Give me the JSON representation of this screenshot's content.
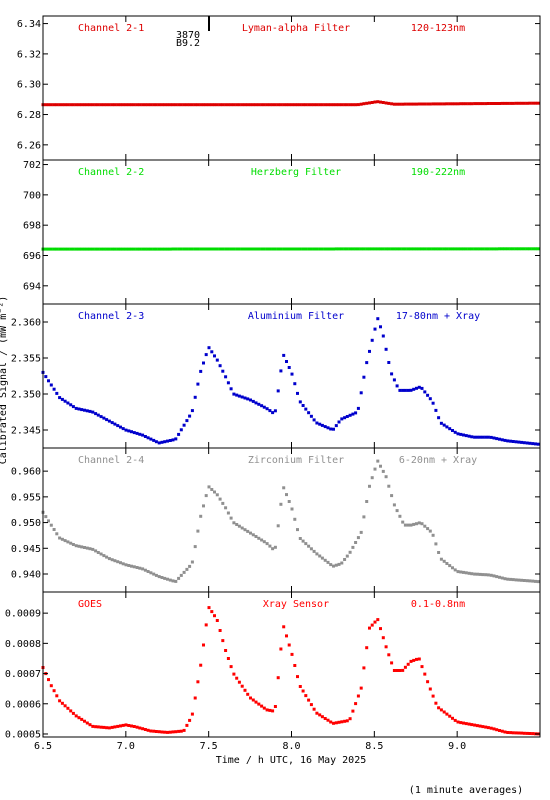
{
  "page": {
    "xlabel": "Time / h UTC, 16 May 2025",
    "ylabel": "Calibrated Signal / (mW m⁻²)",
    "footnote": "(1 minute averages)",
    "marker_text": [
      "3870",
      "B9.2"
    ]
  },
  "chart_data": [
    {
      "type": "scatter",
      "id": "ch21",
      "channel_label": "Channel 2-1",
      "filter_label": "Lyman-alpha Filter",
      "band_label": "120-123nm",
      "color": "#dd0000",
      "xlim": [
        6.5,
        9.5
      ],
      "ylim": [
        6.25,
        6.345
      ],
      "xticks": [
        6.5,
        7.0,
        7.5,
        8.0,
        8.5,
        9.0
      ],
      "yticks": [
        6.26,
        6.28,
        6.3,
        6.32,
        6.34
      ],
      "ytick_labels": [
        "6.26",
        "6.28",
        "6.30",
        "6.32",
        "6.34"
      ],
      "x_start": 6.5,
      "x_end": 9.5,
      "x_step": 0.0167,
      "keys": [
        [
          6.5,
          6.2865
        ],
        [
          8.4,
          6.2865
        ],
        [
          8.52,
          6.2885
        ],
        [
          8.62,
          6.2868
        ],
        [
          9.5,
          6.2875
        ]
      ]
    },
    {
      "type": "scatter",
      "id": "ch22",
      "channel_label": "Channel 2-2",
      "filter_label": "Herzberg Filter",
      "band_label": "190-222nm",
      "color": "#00dd00",
      "xlim": [
        6.5,
        9.5
      ],
      "ylim": [
        692.8,
        702.3
      ],
      "xticks": [
        6.5,
        7.0,
        7.5,
        8.0,
        8.5,
        9.0
      ],
      "yticks": [
        694,
        696,
        698,
        700,
        702
      ],
      "ytick_labels": [
        "694",
        "696",
        "698",
        "700",
        "702"
      ],
      "x_start": 6.5,
      "x_end": 9.5,
      "x_step": 0.0167,
      "keys": [
        [
          6.5,
          696.42
        ],
        [
          9.5,
          696.44
        ]
      ]
    },
    {
      "type": "scatter",
      "id": "ch23",
      "channel_label": "Channel 2-3",
      "filter_label": "Aluminium Filter",
      "band_label": "17-80nm + Xray",
      "color": "#0000cc",
      "xlim": [
        6.5,
        9.5
      ],
      "ylim": [
        2.3425,
        2.3625
      ],
      "xticks": [
        6.5,
        7.0,
        7.5,
        8.0,
        8.5,
        9.0
      ],
      "yticks": [
        2.345,
        2.35,
        2.355,
        2.36
      ],
      "ytick_labels": [
        "2.345",
        "2.350",
        "2.355",
        "2.360"
      ],
      "x_start": 6.5,
      "x_end": 9.5,
      "x_step": 0.0167,
      "keys": [
        [
          6.5,
          2.353
        ],
        [
          6.6,
          2.3495
        ],
        [
          6.7,
          2.348
        ],
        [
          6.8,
          2.3475
        ],
        [
          6.88,
          2.3465
        ],
        [
          7.0,
          2.345
        ],
        [
          7.1,
          2.3443
        ],
        [
          7.2,
          2.3432
        ],
        [
          7.3,
          2.3437
        ],
        [
          7.4,
          2.3475
        ],
        [
          7.45,
          2.353
        ],
        [
          7.5,
          2.3565
        ],
        [
          7.55,
          2.3548
        ],
        [
          7.6,
          2.3525
        ],
        [
          7.65,
          2.35
        ],
        [
          7.75,
          2.3492
        ],
        [
          7.85,
          2.348
        ],
        [
          7.9,
          2.3472
        ],
        [
          7.95,
          2.3555
        ],
        [
          8.0,
          2.353
        ],
        [
          8.05,
          2.349
        ],
        [
          8.15,
          2.346
        ],
        [
          8.25,
          2.345
        ],
        [
          8.3,
          2.3465
        ],
        [
          8.35,
          2.347
        ],
        [
          8.4,
          2.3475
        ],
        [
          8.45,
          2.354
        ],
        [
          8.52,
          2.3605
        ],
        [
          8.55,
          2.3585
        ],
        [
          8.6,
          2.353
        ],
        [
          8.65,
          2.3505
        ],
        [
          8.72,
          2.3505
        ],
        [
          8.78,
          2.351
        ],
        [
          8.85,
          2.349
        ],
        [
          8.9,
          2.346
        ],
        [
          9.0,
          2.3445
        ],
        [
          9.1,
          2.344
        ],
        [
          9.2,
          2.344
        ],
        [
          9.3,
          2.3435
        ],
        [
          9.5,
          2.343
        ]
      ]
    },
    {
      "type": "scatter",
      "id": "ch24",
      "channel_label": "Channel 2-4",
      "filter_label": "Zirconium Filter",
      "band_label": "6-20nm + Xray",
      "color": "#909090",
      "xlim": [
        6.5,
        9.5
      ],
      "ylim": [
        0.9365,
        0.9645
      ],
      "xticks": [
        6.5,
        7.0,
        7.5,
        8.0,
        8.5,
        9.0
      ],
      "yticks": [
        0.94,
        0.945,
        0.95,
        0.955,
        0.96
      ],
      "ytick_labels": [
        "0.940",
        "0.945",
        "0.950",
        "0.955",
        "0.960"
      ],
      "x_start": 6.5,
      "x_end": 9.5,
      "x_step": 0.0167,
      "keys": [
        [
          6.5,
          0.952
        ],
        [
          6.6,
          0.947
        ],
        [
          6.7,
          0.9455
        ],
        [
          6.8,
          0.9448
        ],
        [
          6.9,
          0.943
        ],
        [
          7.0,
          0.9418
        ],
        [
          7.1,
          0.941
        ],
        [
          7.2,
          0.9395
        ],
        [
          7.3,
          0.9385
        ],
        [
          7.4,
          0.942
        ],
        [
          7.45,
          0.951
        ],
        [
          7.5,
          0.957
        ],
        [
          7.55,
          0.9555
        ],
        [
          7.6,
          0.953
        ],
        [
          7.65,
          0.95
        ],
        [
          7.75,
          0.948
        ],
        [
          7.85,
          0.946
        ],
        [
          7.9,
          0.9445
        ],
        [
          7.95,
          0.957
        ],
        [
          8.0,
          0.953
        ],
        [
          8.05,
          0.947
        ],
        [
          8.15,
          0.944
        ],
        [
          8.25,
          0.9415
        ],
        [
          8.3,
          0.942
        ],
        [
          8.35,
          0.944
        ],
        [
          8.42,
          0.948
        ],
        [
          8.47,
          0.957
        ],
        [
          8.52,
          0.962
        ],
        [
          8.57,
          0.959
        ],
        [
          8.62,
          0.9535
        ],
        [
          8.68,
          0.9495
        ],
        [
          8.72,
          0.9495
        ],
        [
          8.78,
          0.95
        ],
        [
          8.85,
          0.948
        ],
        [
          8.9,
          0.943
        ],
        [
          9.0,
          0.9405
        ],
        [
          9.1,
          0.94
        ],
        [
          9.2,
          0.9398
        ],
        [
          9.3,
          0.939
        ],
        [
          9.5,
          0.9385
        ]
      ]
    },
    {
      "type": "scatter",
      "id": "goes",
      "channel_label": "GOES",
      "filter_label": "Xray Sensor",
      "band_label": "0.1-0.8nm",
      "color": "#ff0000",
      "xlim": [
        6.5,
        9.5
      ],
      "ylim": [
        0.00049,
        0.00097
      ],
      "xticks": [
        6.5,
        7.0,
        7.5,
        8.0,
        8.5,
        9.0
      ],
      "yticks": [
        0.0005,
        0.0006,
        0.0007,
        0.0008,
        0.0009
      ],
      "ytick_labels": [
        "0.0005",
        "0.0006",
        "0.0007",
        "0.0008",
        "0.0009"
      ],
      "x_start": 6.5,
      "x_end": 9.5,
      "x_step": 0.0167,
      "keys": [
        [
          6.5,
          0.00072
        ],
        [
          6.55,
          0.00066
        ],
        [
          6.6,
          0.00061
        ],
        [
          6.7,
          0.00056
        ],
        [
          6.8,
          0.000525
        ],
        [
          6.9,
          0.00052
        ],
        [
          6.95,
          0.000525
        ],
        [
          7.0,
          0.00053
        ],
        [
          7.05,
          0.000525
        ],
        [
          7.15,
          0.00051
        ],
        [
          7.25,
          0.000505
        ],
        [
          7.35,
          0.00051
        ],
        [
          7.4,
          0.00056
        ],
        [
          7.45,
          0.00072
        ],
        [
          7.5,
          0.00092
        ],
        [
          7.55,
          0.00088
        ],
        [
          7.6,
          0.00078
        ],
        [
          7.65,
          0.0007
        ],
        [
          7.75,
          0.00062
        ],
        [
          7.85,
          0.00058
        ],
        [
          7.9,
          0.000575
        ],
        [
          7.95,
          0.00086
        ],
        [
          8.0,
          0.00077
        ],
        [
          8.05,
          0.00066
        ],
        [
          8.15,
          0.00057
        ],
        [
          8.25,
          0.000535
        ],
        [
          8.35,
          0.000545
        ],
        [
          8.42,
          0.00065
        ],
        [
          8.47,
          0.00085
        ],
        [
          8.52,
          0.00088
        ],
        [
          8.57,
          0.00079
        ],
        [
          8.62,
          0.00071
        ],
        [
          8.67,
          0.00071
        ],
        [
          8.72,
          0.00074
        ],
        [
          8.77,
          0.00075
        ],
        [
          8.83,
          0.00066
        ],
        [
          8.88,
          0.00059
        ],
        [
          9.0,
          0.00054
        ],
        [
          9.1,
          0.00053
        ],
        [
          9.2,
          0.00052
        ],
        [
          9.3,
          0.000505
        ],
        [
          9.5,
          0.0005
        ]
      ]
    }
  ]
}
